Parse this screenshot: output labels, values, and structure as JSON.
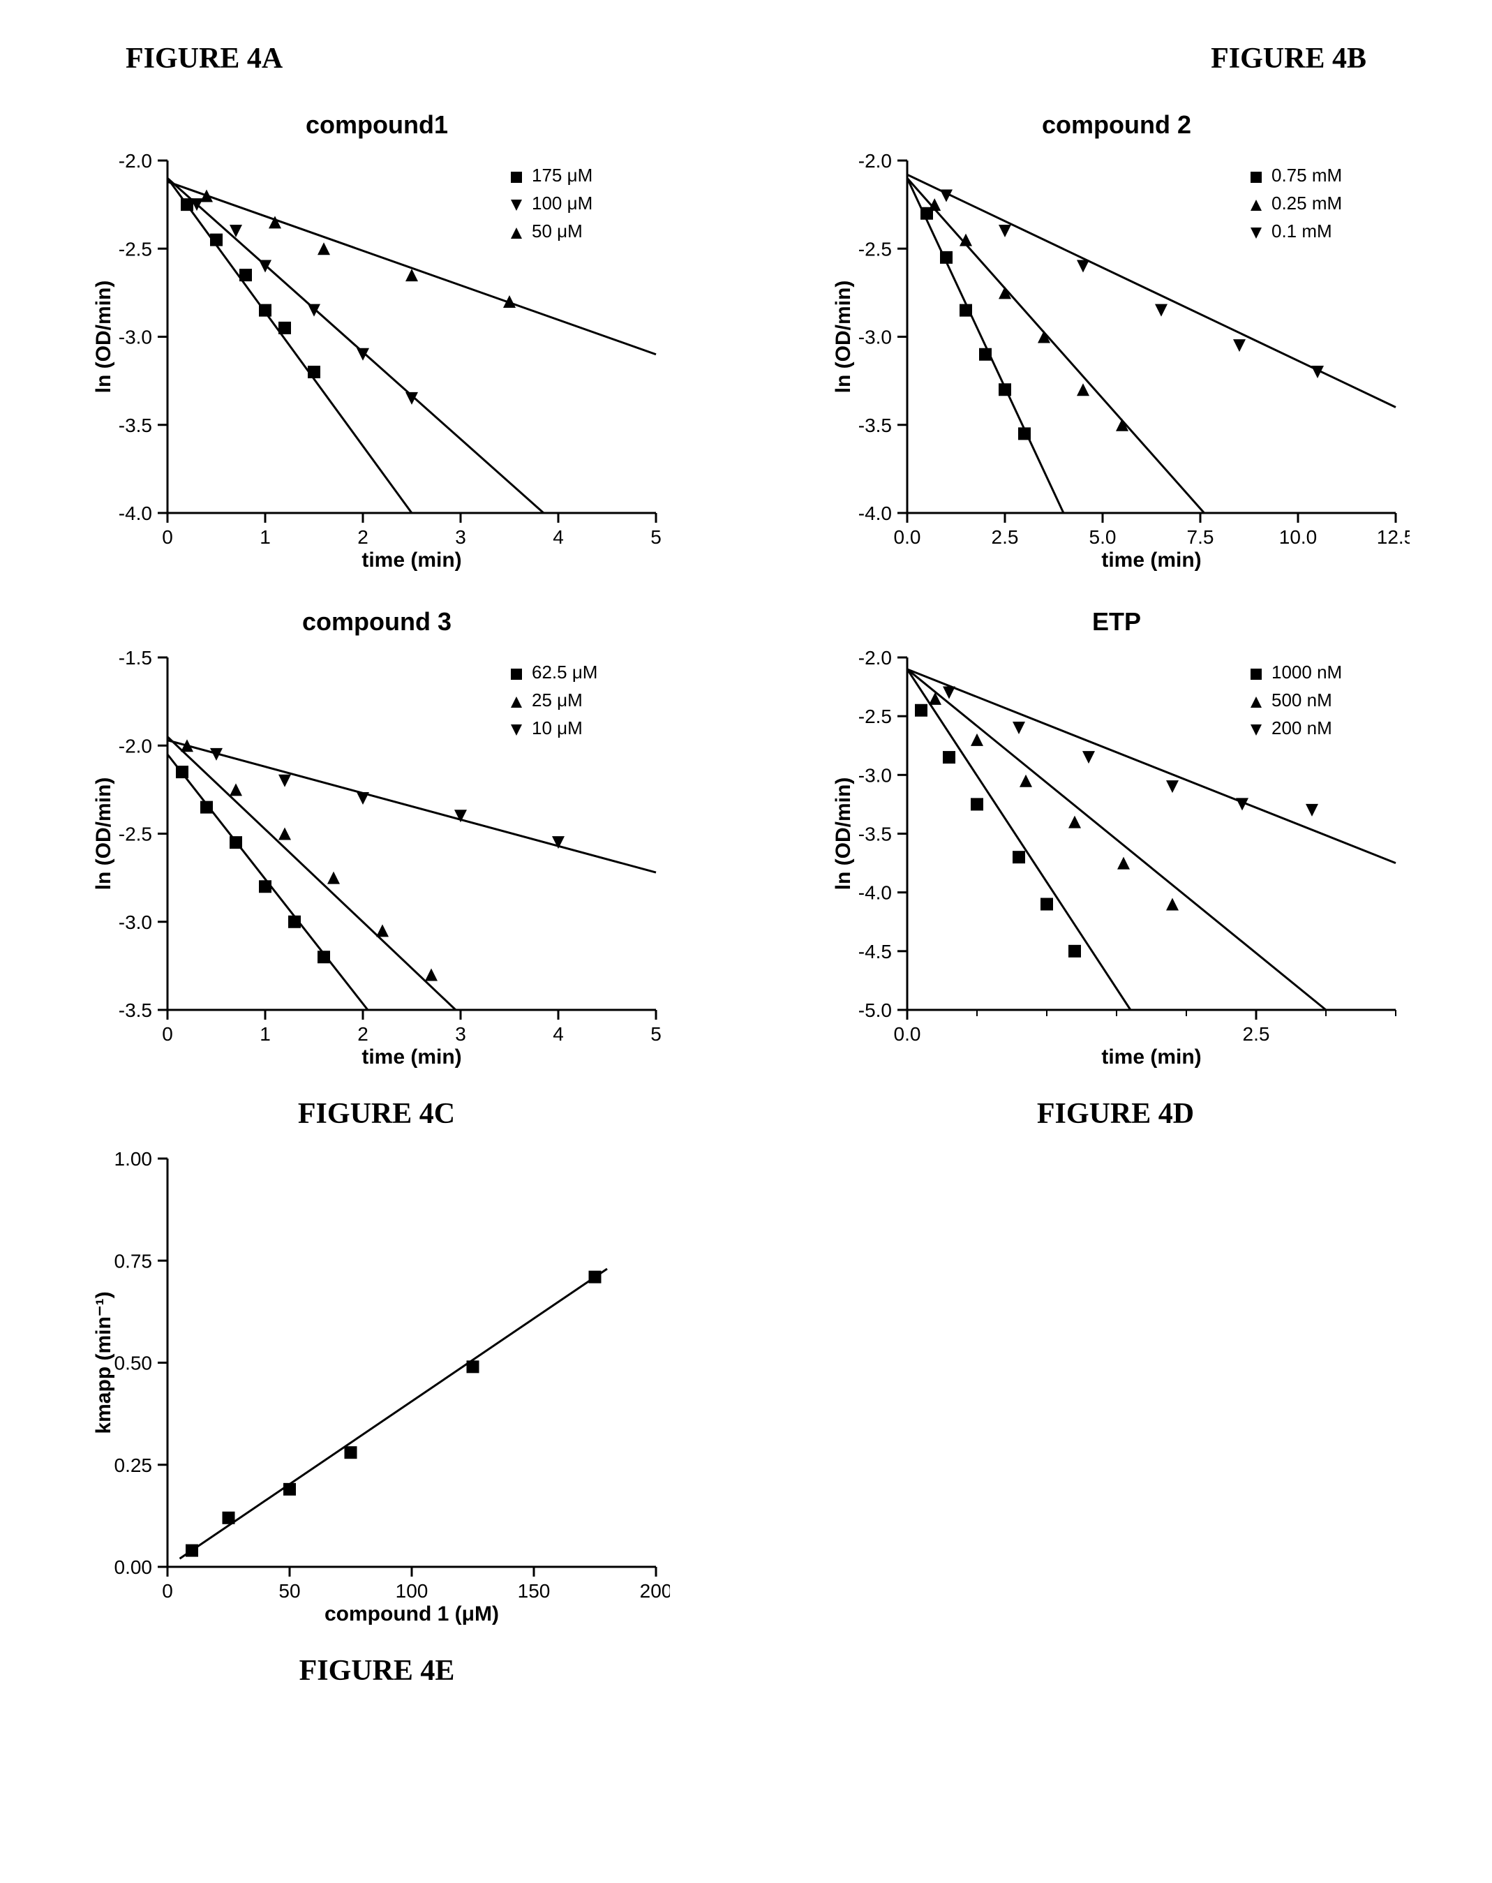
{
  "figureA": {
    "label": "FIGURE 4A",
    "title": "compound1",
    "xlabel": "time (min)",
    "ylabel": "ln (OD/min)",
    "xlim": [
      0,
      5
    ],
    "xticks": [
      0,
      1,
      2,
      3,
      4,
      5
    ],
    "ylim": [
      -4.0,
      -2.0
    ],
    "yticks": [
      -4.0,
      -3.5,
      -3.0,
      -2.5,
      -2.0
    ],
    "series": [
      {
        "name": "175 μM",
        "marker": "square",
        "points": [
          [
            0.2,
            -2.25
          ],
          [
            0.5,
            -2.45
          ],
          [
            0.8,
            -2.65
          ],
          [
            1.0,
            -2.85
          ],
          [
            1.2,
            -2.95
          ],
          [
            1.5,
            -3.2
          ]
        ],
        "line": [
          [
            0.0,
            -2.1
          ],
          [
            2.5,
            -4.0
          ]
        ]
      },
      {
        "name": "100 μM",
        "marker": "tri-down",
        "points": [
          [
            0.3,
            -2.25
          ],
          [
            0.7,
            -2.4
          ],
          [
            1.0,
            -2.6
          ],
          [
            1.5,
            -2.85
          ],
          [
            2.0,
            -3.1
          ],
          [
            2.5,
            -3.35
          ]
        ],
        "line": [
          [
            0.0,
            -2.1
          ],
          [
            3.85,
            -4.0
          ]
        ]
      },
      {
        "name": "50 μM",
        "marker": "tri-up",
        "points": [
          [
            0.4,
            -2.2
          ],
          [
            1.1,
            -2.35
          ],
          [
            1.6,
            -2.5
          ],
          [
            2.5,
            -2.65
          ],
          [
            3.5,
            -2.8
          ]
        ],
        "line": [
          [
            0.0,
            -2.12
          ],
          [
            5.0,
            -3.1
          ]
        ]
      }
    ]
  },
  "figureB": {
    "label": "FIGURE 4B",
    "title": "compound 2",
    "xlabel": "time (min)",
    "ylabel": "ln (OD/min)",
    "xlim": [
      0,
      12.5
    ],
    "xticks": [
      0.0,
      2.5,
      5.0,
      7.5,
      10.0,
      12.5
    ],
    "ylim": [
      -4.0,
      -2.0
    ],
    "yticks": [
      -4.0,
      -3.5,
      -3.0,
      -2.5,
      -2.0
    ],
    "series": [
      {
        "name": "0.75 mM",
        "marker": "square",
        "points": [
          [
            0.5,
            -2.3
          ],
          [
            1.0,
            -2.55
          ],
          [
            1.5,
            -2.85
          ],
          [
            2.0,
            -3.1
          ],
          [
            2.5,
            -3.3
          ],
          [
            3.0,
            -3.55
          ]
        ],
        "line": [
          [
            0.0,
            -2.1
          ],
          [
            4.0,
            -4.0
          ]
        ]
      },
      {
        "name": "0.25 mM",
        "marker": "tri-up",
        "points": [
          [
            0.7,
            -2.25
          ],
          [
            1.5,
            -2.45
          ],
          [
            2.5,
            -2.75
          ],
          [
            3.5,
            -3.0
          ],
          [
            4.5,
            -3.3
          ],
          [
            5.5,
            -3.5
          ]
        ],
        "line": [
          [
            0.0,
            -2.1
          ],
          [
            7.6,
            -4.0
          ]
        ]
      },
      {
        "name": "0.1 mM",
        "marker": "tri-down",
        "points": [
          [
            1.0,
            -2.2
          ],
          [
            2.5,
            -2.4
          ],
          [
            4.5,
            -2.6
          ],
          [
            6.5,
            -2.85
          ],
          [
            8.5,
            -3.05
          ],
          [
            10.5,
            -3.2
          ]
        ],
        "line": [
          [
            0.0,
            -2.08
          ],
          [
            12.5,
            -3.4
          ]
        ]
      }
    ]
  },
  "figureC": {
    "label": "FIGURE 4C",
    "title": "compound 3",
    "xlabel": "time (min)",
    "ylabel": "ln (OD/min)",
    "xlim": [
      0,
      5
    ],
    "xticks": [
      0,
      1,
      2,
      3,
      4,
      5
    ],
    "ylim": [
      -3.5,
      -1.5
    ],
    "yticks": [
      -3.5,
      -3.0,
      -2.5,
      -2.0,
      -1.5
    ],
    "series": [
      {
        "name": "62.5 μM",
        "marker": "square",
        "points": [
          [
            0.15,
            -2.15
          ],
          [
            0.4,
            -2.35
          ],
          [
            0.7,
            -2.55
          ],
          [
            1.0,
            -2.8
          ],
          [
            1.3,
            -3.0
          ],
          [
            1.6,
            -3.2
          ]
        ],
        "line": [
          [
            0.0,
            -2.05
          ],
          [
            2.05,
            -3.5
          ]
        ]
      },
      {
        "name": "25 μM",
        "marker": "tri-up",
        "points": [
          [
            0.2,
            -2.0
          ],
          [
            0.7,
            -2.25
          ],
          [
            1.2,
            -2.5
          ],
          [
            1.7,
            -2.75
          ],
          [
            2.2,
            -3.05
          ],
          [
            2.7,
            -3.3
          ]
        ],
        "line": [
          [
            0.0,
            -1.95
          ],
          [
            2.95,
            -3.5
          ]
        ]
      },
      {
        "name": "10 μM",
        "marker": "tri-down",
        "points": [
          [
            0.5,
            -2.05
          ],
          [
            1.2,
            -2.2
          ],
          [
            2.0,
            -2.3
          ],
          [
            3.0,
            -2.4
          ],
          [
            4.0,
            -2.55
          ]
        ],
        "line": [
          [
            0.0,
            -1.97
          ],
          [
            5.0,
            -2.72
          ]
        ]
      }
    ]
  },
  "figureD": {
    "label": "FIGURE 4D",
    "title": "ETP",
    "xlabel": "time (min)",
    "ylabel": "ln (OD/min)",
    "xlim": [
      0,
      3.5
    ],
    "xticks": [
      0.0,
      2.5
    ],
    "ylim": [
      -5.0,
      -2.0
    ],
    "yticks": [
      -5.0,
      -4.5,
      -4.0,
      -3.5,
      -3.0,
      -2.5,
      -2.0
    ],
    "xminor": [
      0.5,
      1.0,
      1.5,
      2.0,
      3.0,
      3.5
    ],
    "series": [
      {
        "name": "1000 nM",
        "marker": "square",
        "points": [
          [
            0.1,
            -2.45
          ],
          [
            0.3,
            -2.85
          ],
          [
            0.5,
            -3.25
          ],
          [
            0.8,
            -3.7
          ],
          [
            1.0,
            -4.1
          ],
          [
            1.2,
            -4.5
          ]
        ],
        "line": [
          [
            0.0,
            -2.1
          ],
          [
            1.6,
            -5.0
          ]
        ]
      },
      {
        "name": "500 nM",
        "marker": "tri-up",
        "points": [
          [
            0.2,
            -2.35
          ],
          [
            0.5,
            -2.7
          ],
          [
            0.85,
            -3.05
          ],
          [
            1.2,
            -3.4
          ],
          [
            1.55,
            -3.75
          ],
          [
            1.9,
            -4.1
          ]
        ],
        "line": [
          [
            0.0,
            -2.1
          ],
          [
            3.0,
            -5.0
          ]
        ]
      },
      {
        "name": "200 nM",
        "marker": "tri-down",
        "points": [
          [
            0.3,
            -2.3
          ],
          [
            0.8,
            -2.6
          ],
          [
            1.3,
            -2.85
          ],
          [
            1.9,
            -3.1
          ],
          [
            2.4,
            -3.25
          ],
          [
            2.9,
            -3.3
          ]
        ],
        "line": [
          [
            0.0,
            -2.1
          ],
          [
            3.5,
            -3.75
          ]
        ]
      }
    ]
  },
  "figureE": {
    "label": "FIGURE 4E",
    "xlabel": "compound 1 (μM)",
    "ylabel": "kmapp (min⁻¹)",
    "xlim": [
      0,
      200
    ],
    "xticks": [
      0,
      50,
      100,
      150,
      200
    ],
    "ylim": [
      0,
      1.0
    ],
    "yticks": [
      0.0,
      0.25,
      0.5,
      0.75,
      1.0
    ],
    "points": [
      [
        10,
        0.04
      ],
      [
        25,
        0.12
      ],
      [
        50,
        0.19
      ],
      [
        75,
        0.28
      ],
      [
        125,
        0.49
      ],
      [
        175,
        0.71
      ]
    ],
    "line": [
      [
        5,
        0.02
      ],
      [
        180,
        0.73
      ]
    ]
  },
  "styling": {
    "stroke_color": "#000000",
    "axis_width": 3,
    "line_width": 3,
    "marker_size": 9,
    "font_family": "Arial, Helvetica, sans-serif",
    "label_font_family_serif": "Times New Roman, Times, serif",
    "background": "#ffffff"
  }
}
